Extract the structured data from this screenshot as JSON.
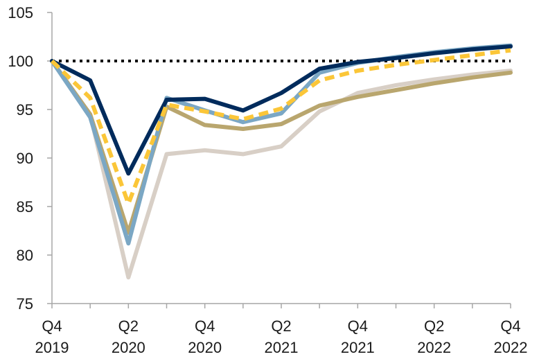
{
  "chart_data": {
    "type": "line",
    "x": [
      "Q4 2019",
      "Q1 2020",
      "Q2 2020",
      "Q3 2020",
      "Q4 2020",
      "Q1 2021",
      "Q2 2021",
      "Q3 2021",
      "Q4 2021",
      "Q1 2022",
      "Q2 2022",
      "Q3 2022",
      "Q4 2022"
    ],
    "xticks": [
      {
        "index": 0,
        "line1": "Q4",
        "line2": "2019"
      },
      {
        "index": 2,
        "line1": "Q2",
        "line2": "2020"
      },
      {
        "index": 4,
        "line1": "Q4",
        "line2": "2020"
      },
      {
        "index": 6,
        "line1": "Q2",
        "line2": "2021"
      },
      {
        "index": 8,
        "line1": "Q4",
        "line2": "2021"
      },
      {
        "index": 10,
        "line1": "Q2",
        "line2": "2022"
      },
      {
        "index": 12,
        "line1": "Q4",
        "line2": "2022"
      }
    ],
    "yticks": [
      75,
      80,
      85,
      90,
      95,
      100,
      105
    ],
    "ylim": [
      75,
      105
    ],
    "reference_line": {
      "y": 100,
      "color": "#000000",
      "style": "dotted"
    },
    "title": "",
    "xlabel": "",
    "ylabel": "",
    "grid": false,
    "series": [
      {
        "color": "#d8cfc6",
        "dashed": false,
        "values": [
          100,
          94.5,
          77.7,
          90.4,
          90.8,
          90.4,
          91.2,
          94.8,
          96.7,
          97.5,
          98.1,
          98.6,
          99.0
        ]
      },
      {
        "color": "#b9a66e",
        "dashed": false,
        "values": [
          100,
          94.5,
          82.3,
          95.3,
          93.4,
          93.0,
          93.5,
          95.4,
          96.3,
          97.0,
          97.7,
          98.3,
          98.8
        ]
      },
      {
        "color": "#7ba7c4",
        "dashed": false,
        "values": [
          100,
          94.2,
          81.2,
          96.2,
          94.9,
          93.7,
          94.6,
          98.8,
          99.8,
          100.4,
          100.9,
          101.3,
          101.6
        ]
      },
      {
        "color": "#002b5c",
        "dashed": false,
        "values": [
          100,
          98.0,
          88.4,
          96.0,
          96.1,
          94.9,
          96.7,
          99.2,
          99.9,
          100.3,
          100.8,
          101.2,
          101.5
        ]
      },
      {
        "color": "#fbc638",
        "dashed": true,
        "values": [
          100,
          96.2,
          85.3,
          95.5,
          94.8,
          94.0,
          95.1,
          98.0,
          99.0,
          99.6,
          100.1,
          100.6,
          101.1
        ]
      }
    ]
  }
}
